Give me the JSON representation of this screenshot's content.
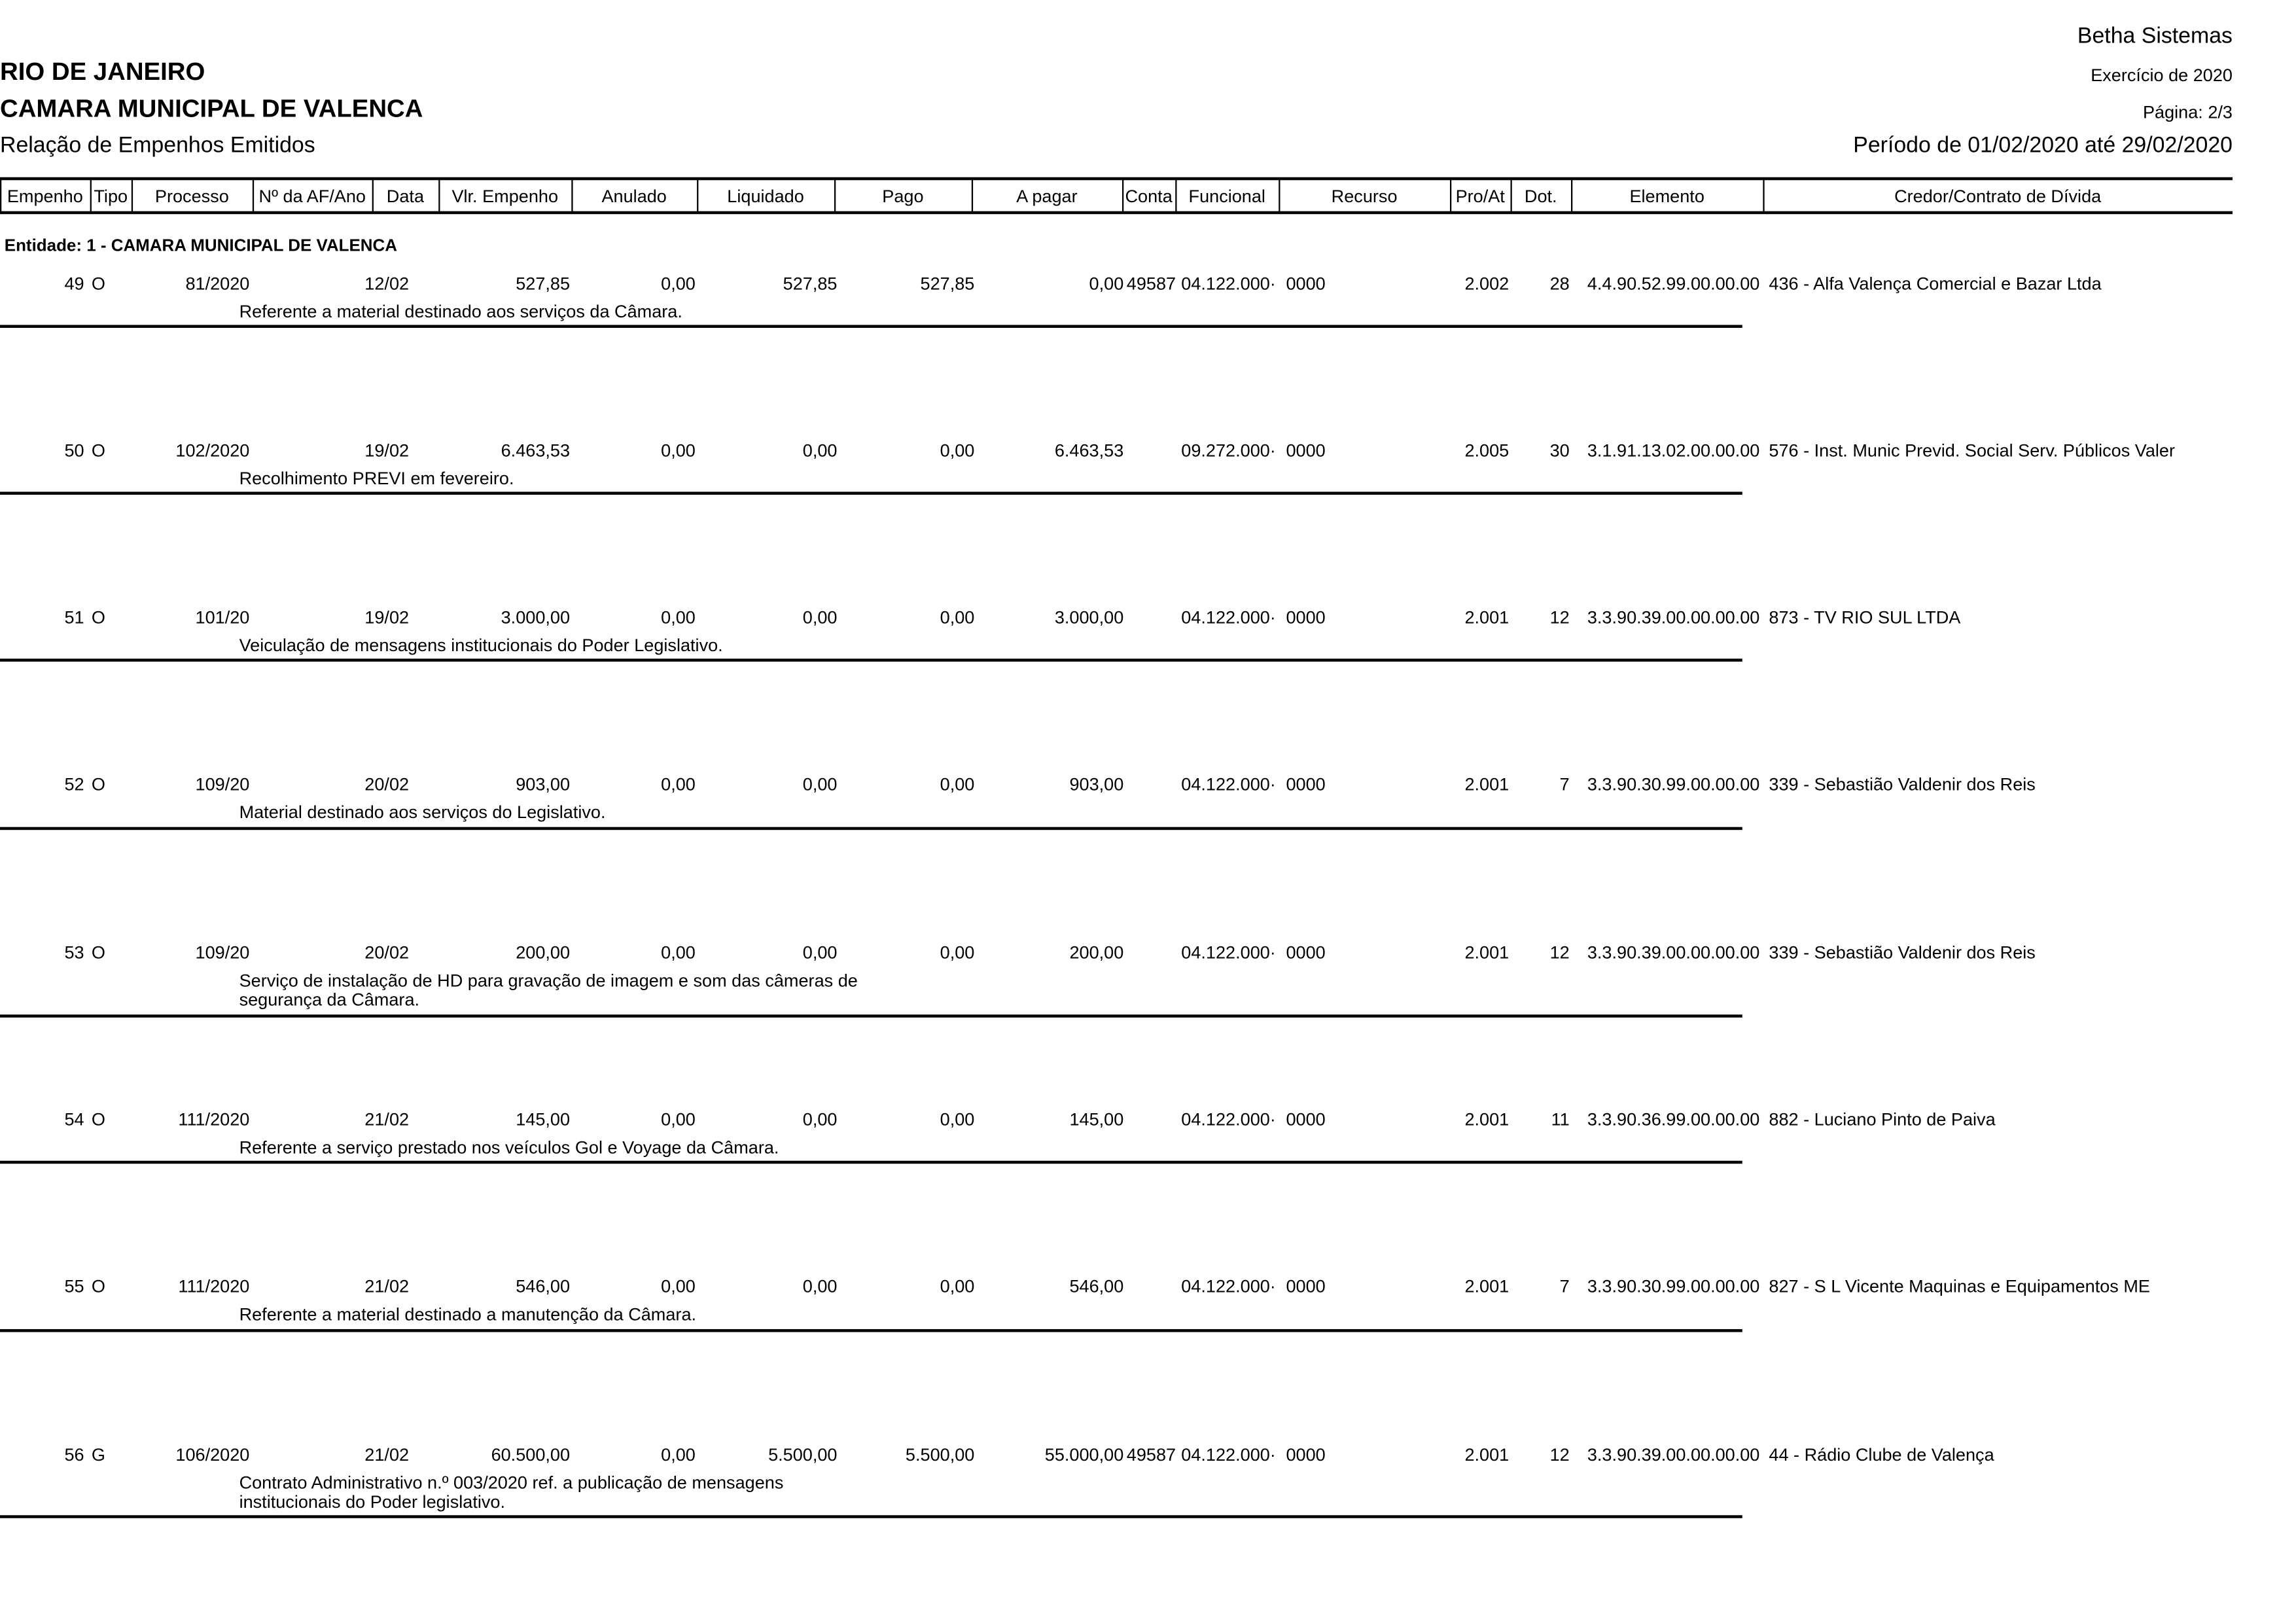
{
  "header": {
    "company": "Betha Sistemas",
    "state": "RIO DE JANEIRO",
    "entity": "CAMARA MUNICIPAL DE VALENCA",
    "report_title": "Relação de Empenhos Emitidos",
    "exercise": "Exercício de 2020",
    "page": "Página: 2/3",
    "period": "Período de 01/02/2020 até 29/02/2020"
  },
  "columns": [
    "Empenho",
    "Tipo",
    "Processo",
    "Nº da AF/Ano",
    "Data",
    "Vlr. Empenho",
    "Anulado",
    "Liquidado",
    "Pago",
    "A pagar",
    "Conta",
    "Funcional",
    "Recurso",
    "Pro/At",
    "Dot.",
    "Elemento",
    "Credor/Contrato de Dívida"
  ],
  "entity_group": "Entidade: 1 - CAMARA MUNICIPAL DE VALENCA",
  "rows": [
    {
      "empenho": "49",
      "tipo": "O",
      "processo": "81/2020",
      "af": "",
      "data": "12/02",
      "valor": "527,85",
      "anulado": "0,00",
      "liquidado": "527,85",
      "pago": "527,85",
      "apagar": "0,00",
      "conta": "49587",
      "funcional": "04.122.000·",
      "recurso": "0000",
      "proat": "2.002",
      "dot": "28",
      "elemento": "4.4.90.52.99.00.00.00",
      "credor": "436 - Alfa Valença Comercial e Bazar Ltda",
      "descricao": "Referente a material destinado aos serviços da Câmara."
    },
    {
      "empenho": "50",
      "tipo": "O",
      "processo": "102/2020",
      "af": "",
      "data": "19/02",
      "valor": "6.463,53",
      "anulado": "0,00",
      "liquidado": "0,00",
      "pago": "0,00",
      "apagar": "6.463,53",
      "conta": "",
      "funcional": "09.272.000·",
      "recurso": "0000",
      "proat": "2.005",
      "dot": "30",
      "elemento": "3.1.91.13.02.00.00.00",
      "credor": "576 - Inst. Munic Previd. Social Serv. Públicos Valer",
      "descricao": "Recolhimento PREVI em fevereiro."
    },
    {
      "empenho": "51",
      "tipo": "O",
      "processo": "101/20",
      "af": "",
      "data": "19/02",
      "valor": "3.000,00",
      "anulado": "0,00",
      "liquidado": "0,00",
      "pago": "0,00",
      "apagar": "3.000,00",
      "conta": "",
      "funcional": "04.122.000·",
      "recurso": "0000",
      "proat": "2.001",
      "dot": "12",
      "elemento": "3.3.90.39.00.00.00.00",
      "credor": "873 - TV RIO SUL LTDA",
      "descricao": "Veiculação de mensagens institucionais do Poder Legislativo."
    },
    {
      "empenho": "52",
      "tipo": "O",
      "processo": "109/20",
      "af": "",
      "data": "20/02",
      "valor": "903,00",
      "anulado": "0,00",
      "liquidado": "0,00",
      "pago": "0,00",
      "apagar": "903,00",
      "conta": "",
      "funcional": "04.122.000·",
      "recurso": "0000",
      "proat": "2.001",
      "dot": "7",
      "elemento": "3.3.90.30.99.00.00.00",
      "credor": "339 - Sebastião Valdenir dos Reis",
      "descricao": "Material destinado aos serviços do Legislativo."
    },
    {
      "empenho": "53",
      "tipo": "O",
      "processo": "109/20",
      "af": "",
      "data": "20/02",
      "valor": "200,00",
      "anulado": "0,00",
      "liquidado": "0,00",
      "pago": "0,00",
      "apagar": "200,00",
      "conta": "",
      "funcional": "04.122.000·",
      "recurso": "0000",
      "proat": "2.001",
      "dot": "12",
      "elemento": "3.3.90.39.00.00.00.00",
      "credor": "339 - Sebastião Valdenir dos Reis",
      "descricao": "Serviço de instalação de HD para gravação de imagem e som das câmeras de segurança da Câmara."
    },
    {
      "empenho": "54",
      "tipo": "O",
      "processo": "111/2020",
      "af": "",
      "data": "21/02",
      "valor": "145,00",
      "anulado": "0,00",
      "liquidado": "0,00",
      "pago": "0,00",
      "apagar": "145,00",
      "conta": "",
      "funcional": "04.122.000·",
      "recurso": "0000",
      "proat": "2.001",
      "dot": "11",
      "elemento": "3.3.90.36.99.00.00.00",
      "credor": "882 - Luciano Pinto de Paiva",
      "descricao": "Referente a serviço prestado nos veículos Gol e Voyage da Câmara."
    },
    {
      "empenho": "55",
      "tipo": "O",
      "processo": "111/2020",
      "af": "",
      "data": "21/02",
      "valor": "546,00",
      "anulado": "0,00",
      "liquidado": "0,00",
      "pago": "0,00",
      "apagar": "546,00",
      "conta": "",
      "funcional": "04.122.000·",
      "recurso": "0000",
      "proat": "2.001",
      "dot": "7",
      "elemento": "3.3.90.30.99.00.00.00",
      "credor": "827 - S L Vicente Maquinas e Equipamentos ME",
      "descricao": "Referente a material destinado a manutenção da Câmara."
    },
    {
      "empenho": "56",
      "tipo": "G",
      "processo": "106/2020",
      "af": "",
      "data": "21/02",
      "valor": "60.500,00",
      "anulado": "0,00",
      "liquidado": "5.500,00",
      "pago": "5.500,00",
      "apagar": "55.000,00",
      "conta": "49587",
      "funcional": "04.122.000·",
      "recurso": "0000",
      "proat": "2.001",
      "dot": "12",
      "elemento": "3.3.90.39.00.00.00.00",
      "credor": "44 - Rádio Clube de Valença",
      "descricao": "Contrato Administrativo n.º 003/2020 ref. a publicação de mensagens institucionais do Poder legislativo."
    }
  ]
}
